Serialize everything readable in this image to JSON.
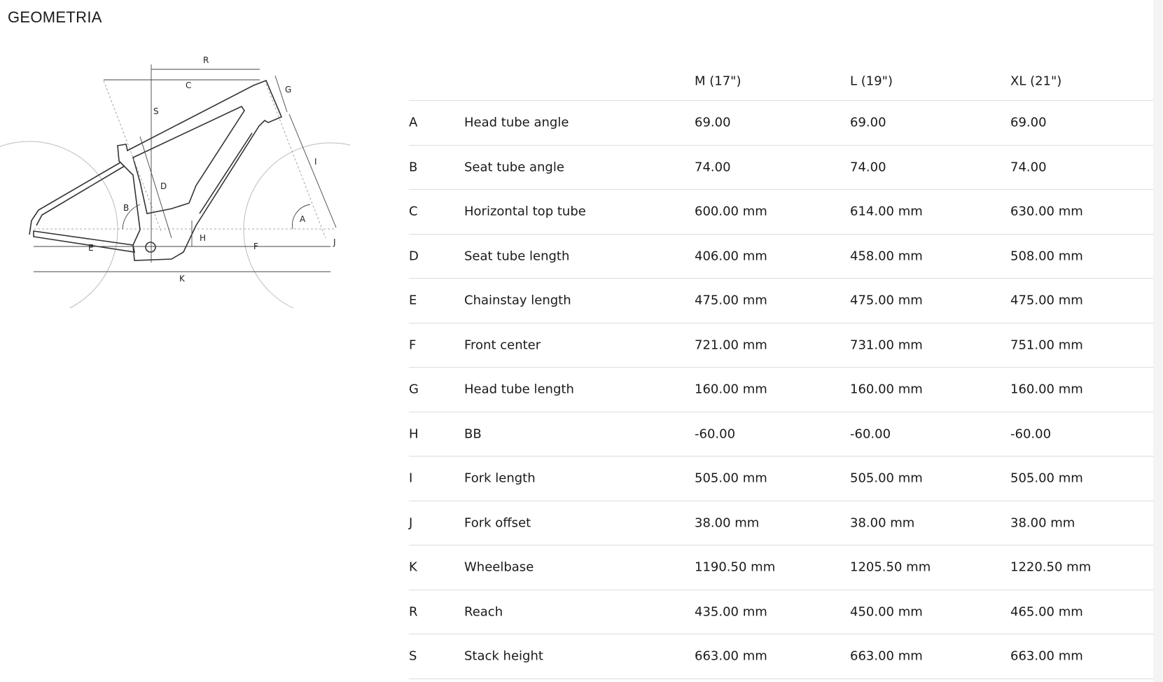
{
  "title": "GEOMETRIA",
  "diagram_labels": [
    "R",
    "C",
    "S",
    "G",
    "I",
    "D",
    "B",
    "A",
    "H",
    "E",
    "F",
    "J",
    "K"
  ],
  "table": {
    "columns": [
      "M (17\")",
      "L (19\")",
      "XL (21\")"
    ],
    "rows": [
      {
        "code": "A",
        "name": "Head tube angle",
        "values": [
          "69.00",
          "69.00",
          "69.00"
        ]
      },
      {
        "code": "B",
        "name": "Seat tube angle",
        "values": [
          "74.00",
          "74.00",
          "74.00"
        ]
      },
      {
        "code": "C",
        "name": "Horizontal top tube",
        "values": [
          "600.00 mm",
          "614.00 mm",
          "630.00 mm"
        ]
      },
      {
        "code": "D",
        "name": "Seat tube length",
        "values": [
          "406.00 mm",
          "458.00 mm",
          "508.00 mm"
        ]
      },
      {
        "code": "E",
        "name": "Chainstay length",
        "values": [
          "475.00 mm",
          "475.00 mm",
          "475.00 mm"
        ]
      },
      {
        "code": "F",
        "name": "Front center",
        "values": [
          "721.00 mm",
          "731.00 mm",
          "751.00 mm"
        ]
      },
      {
        "code": "G",
        "name": "Head tube length",
        "values": [
          "160.00 mm",
          "160.00 mm",
          "160.00 mm"
        ]
      },
      {
        "code": "H",
        "name": "BB",
        "values": [
          "-60.00",
          "-60.00",
          "-60.00"
        ]
      },
      {
        "code": "I",
        "name": "Fork length",
        "values": [
          "505.00 mm",
          "505.00 mm",
          "505.00 mm"
        ]
      },
      {
        "code": "J",
        "name": "Fork offset",
        "values": [
          "38.00 mm",
          "38.00 mm",
          "38.00 mm"
        ]
      },
      {
        "code": "K",
        "name": "Wheelbase",
        "values": [
          "1190.50 mm",
          "1205.50 mm",
          "1220.50 mm"
        ]
      },
      {
        "code": "R",
        "name": "Reach",
        "values": [
          "435.00 mm",
          "450.00 mm",
          "465.00 mm"
        ]
      },
      {
        "code": "S",
        "name": "Stack height",
        "values": [
          "663.00 mm",
          "663.00 mm",
          "663.00 mm"
        ]
      }
    ]
  }
}
